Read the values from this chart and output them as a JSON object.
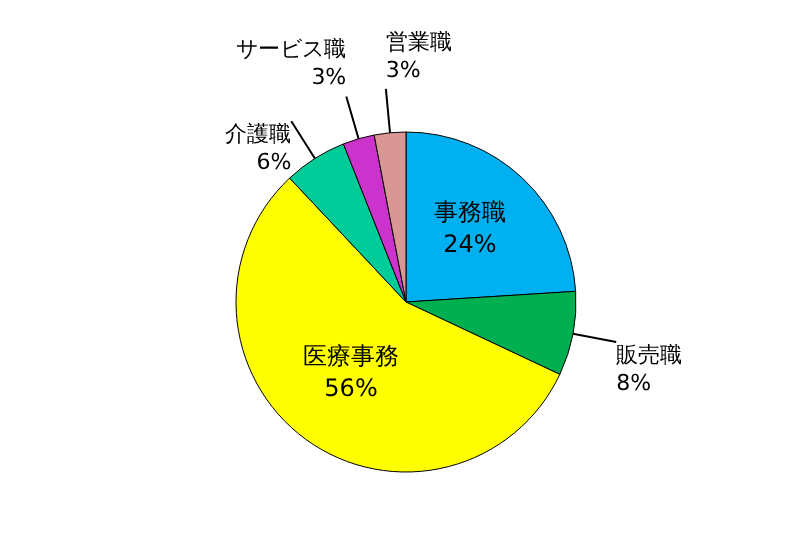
{
  "chart_data": {
    "type": "pie",
    "categories": [
      "事務職",
      "販売職",
      "医療事務",
      "介護職",
      "サービス職",
      "営業職"
    ],
    "values": [
      24,
      8,
      56,
      6,
      3,
      3
    ],
    "value_labels": [
      "24%",
      "8%",
      "56%",
      "6%",
      "3%",
      "3%"
    ],
    "colors": [
      "#00b0f0",
      "#00b050",
      "#ffff00",
      "#00cc99",
      "#cc33cc",
      "#d99694"
    ],
    "legend": false
  }
}
